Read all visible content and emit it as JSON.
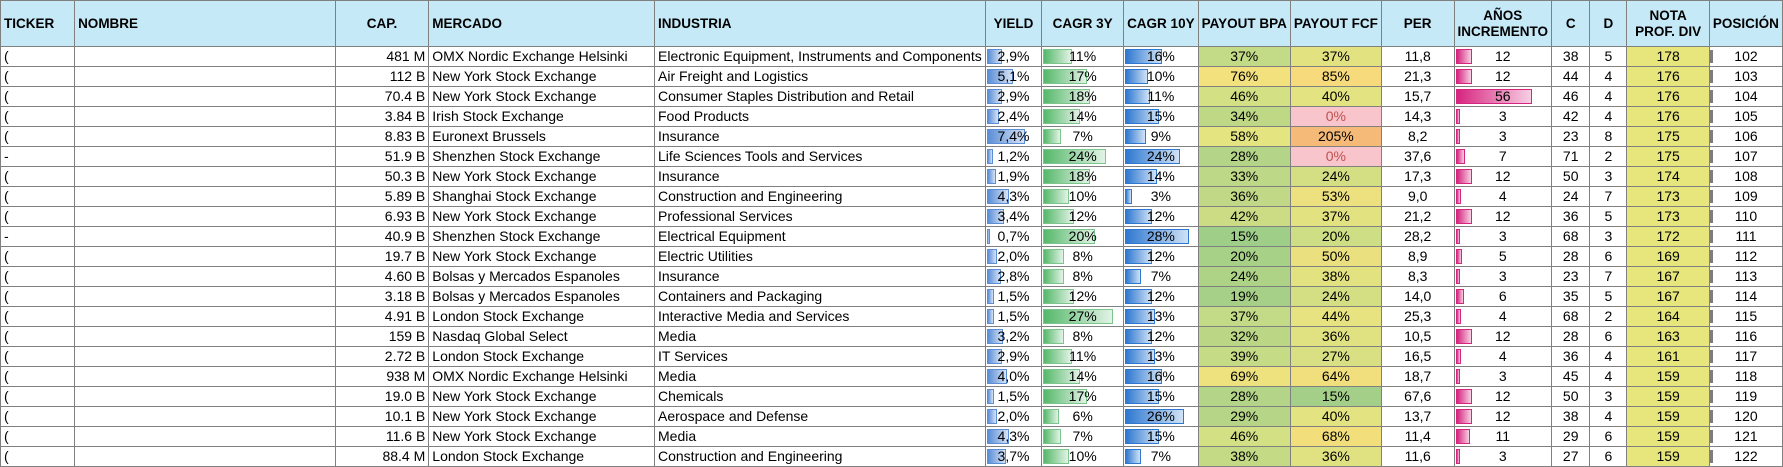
{
  "headers": {
    "ticker": "TICKER",
    "nombre": "NOMBRE",
    "cap": "CAP.",
    "mercado": "MERCADO",
    "industria": "INDUSTRIA",
    "yield": "YIELD",
    "cagr3y": "CAGR 3Y",
    "cagr10y": "CAGR 10Y",
    "payout_bpa": "PAYOUT BPA",
    "payout_fcf": "PAYOUT FCF",
    "per": "PER",
    "anos_line1": "AÑOS",
    "anos_line2": "INCREMENTO",
    "c": "C",
    "d": "D",
    "nota_line1": "NOTA",
    "nota_line2": "PROF. DIV",
    "posicion": "POSICIÓN"
  },
  "rows": [
    {
      "ticker": "(",
      "cap": "481 M",
      "mercado": "OMX Nordic Exchange Helsinki",
      "industria": "Electronic Equipment, Instruments and Components",
      "yield": "2,9%",
      "yield_v": 2.9,
      "cagr3y": "11%",
      "cagr3y_v": 11,
      "cagr10y": "16%",
      "cagr10y_v": 16,
      "payout_bpa": "37%",
      "payout_bpa_color": "#c3da86",
      "payout_fcf": "37%",
      "payout_fcf_color": "#e2e281",
      "per": "11,8",
      "anos": "12",
      "anos_v": 12,
      "c": "38",
      "d": "5",
      "nota": "178",
      "posicion": "102"
    },
    {
      "ticker": "(",
      "cap": "112 B",
      "mercado": "New York Stock Exchange",
      "industria": "Air Freight and Logistics",
      "yield": "5,1%",
      "yield_v": 5.1,
      "cagr3y": "17%",
      "cagr3y_v": 17,
      "cagr10y": "10%",
      "cagr10y_v": 10,
      "payout_bpa": "76%",
      "payout_bpa_color": "#f2e17d",
      "payout_fcf": "85%",
      "payout_fcf_color": "#f6da7b",
      "per": "21,3",
      "anos": "12",
      "anos_v": 12,
      "c": "44",
      "d": "4",
      "nota": "176",
      "posicion": "103"
    },
    {
      "ticker": "(",
      "cap": "70.4 B",
      "mercado": "New York Stock Exchange",
      "industria": "Consumer Staples Distribution and Retail",
      "yield": "2,9%",
      "yield_v": 2.9,
      "cagr3y": "18%",
      "cagr3y_v": 18,
      "cagr10y": "11%",
      "cagr10y_v": 11,
      "payout_bpa": "46%",
      "payout_bpa_color": "#d4e084",
      "payout_fcf": "40%",
      "payout_fcf_color": "#e4e381",
      "per": "15,7",
      "anos": "56",
      "anos_v": 56,
      "c": "46",
      "d": "4",
      "nota": "176",
      "posicion": "104"
    },
    {
      "ticker": "(",
      "cap": "3.84 B",
      "mercado": "Irish Stock Exchange",
      "industria": "Food Products",
      "yield": "2,4%",
      "yield_v": 2.4,
      "cagr3y": "14%",
      "cagr3y_v": 14,
      "cagr10y": "15%",
      "cagr10y_v": 15,
      "payout_bpa": "34%",
      "payout_bpa_color": "#bfd886",
      "payout_fcf": "0%",
      "payout_fcf_color": "#f8c5cc",
      "payout_fcf_text": "#c0504d",
      "per": "14,3",
      "anos": "3",
      "anos_v": 3,
      "c": "42",
      "d": "4",
      "nota": "176",
      "posicion": "105"
    },
    {
      "ticker": "(",
      "cap": "8.83 B",
      "mercado": "Euronext Brussels",
      "industria": "Insurance",
      "yield": "7,4%",
      "yield_v": 7.4,
      "cagr3y": "7%",
      "cagr3y_v": 7,
      "cagr10y": "9%",
      "cagr10y_v": 9,
      "payout_bpa": "58%",
      "payout_bpa_color": "#e4e481",
      "payout_fcf": "205%",
      "payout_fcf_color": "#f5b978",
      "per": "8,2",
      "anos": "3",
      "anos_v": 3,
      "c": "23",
      "d": "8",
      "nota": "175",
      "posicion": "106"
    },
    {
      "ticker": "-",
      "cap": "51.9 B",
      "mercado": "Shenzhen Stock Exchange",
      "industria": "Life Sciences Tools and Services",
      "yield": "1,2%",
      "yield_v": 1.2,
      "cagr3y": "24%",
      "cagr3y_v": 24,
      "cagr10y": "24%",
      "cagr10y_v": 24,
      "payout_bpa": "28%",
      "payout_bpa_color": "#b4d587",
      "payout_fcf": "0%",
      "payout_fcf_color": "#f8c5cc",
      "payout_fcf_text": "#c0504d",
      "per": "37,6",
      "anos": "7",
      "anos_v": 7,
      "c": "71",
      "d": "2",
      "nota": "175",
      "posicion": "107"
    },
    {
      "ticker": "(",
      "cap": "50.3 B",
      "mercado": "New York Stock Exchange",
      "industria": "Insurance",
      "yield": "1,9%",
      "yield_v": 1.9,
      "cagr3y": "18%",
      "cagr3y_v": 18,
      "cagr10y": "14%",
      "cagr10y_v": 14,
      "payout_bpa": "33%",
      "payout_bpa_color": "#bdd886",
      "payout_fcf": "24%",
      "payout_fcf_color": "#d4df84",
      "per": "17,3",
      "anos": "12",
      "anos_v": 12,
      "c": "50",
      "d": "3",
      "nota": "174",
      "posicion": "108"
    },
    {
      "ticker": "(",
      "cap": "5.89 B",
      "mercado": "Shanghai Stock Exchange",
      "industria": "Construction and Engineering",
      "yield": "4,3%",
      "yield_v": 4.3,
      "cagr3y": "10%",
      "cagr3y_v": 10,
      "cagr10y": "3%",
      "cagr10y_v": 3,
      "payout_bpa": "36%",
      "payout_bpa_color": "#c1d986",
      "payout_fcf": "53%",
      "payout_fcf_color": "#ece07f",
      "per": "9,0",
      "anos": "4",
      "anos_v": 4,
      "c": "24",
      "d": "7",
      "nota": "173",
      "posicion": "109"
    },
    {
      "ticker": "(",
      "cap": "6.93 B",
      "mercado": "New York Stock Exchange",
      "industria": "Professional Services",
      "yield": "3,4%",
      "yield_v": 3.4,
      "cagr3y": "12%",
      "cagr3y_v": 12,
      "cagr10y": "12%",
      "cagr10y_v": 12,
      "payout_bpa": "42%",
      "payout_bpa_color": "#cbdc85",
      "payout_fcf": "37%",
      "payout_fcf_color": "#e2e281",
      "per": "21,2",
      "anos": "12",
      "anos_v": 12,
      "c": "36",
      "d": "5",
      "nota": "173",
      "posicion": "110"
    },
    {
      "ticker": "-",
      "cap": "40.9 B",
      "mercado": "Shenzhen Stock Exchange",
      "industria": "Electrical Equipment",
      "yield": "0,7%",
      "yield_v": 0.7,
      "cagr3y": "20%",
      "cagr3y_v": 20,
      "cagr10y": "28%",
      "cagr10y_v": 28,
      "payout_bpa": "15%",
      "payout_bpa_color": "#9fce89",
      "payout_fcf": "20%",
      "payout_fcf_color": "#cdde85",
      "per": "28,2",
      "anos": "3",
      "anos_v": 3,
      "c": "68",
      "d": "3",
      "nota": "172",
      "posicion": "111"
    },
    {
      "ticker": "(",
      "cap": "19.7 B",
      "mercado": "New York Stock Exchange",
      "industria": "Electric Utilities",
      "yield": "2,0%",
      "yield_v": 2.0,
      "cagr3y": "8%",
      "cagr3y_v": 8,
      "cagr10y": "12%",
      "cagr10y_v": 12,
      "payout_bpa": "20%",
      "payout_bpa_color": "#a8d188",
      "payout_fcf": "50%",
      "payout_fcf_color": "#eae07f",
      "per": "8,9",
      "anos": "5",
      "anos_v": 5,
      "c": "28",
      "d": "6",
      "nota": "169",
      "posicion": "112"
    },
    {
      "ticker": "(",
      "cap": "4.60 B",
      "mercado": "Bolsas y Mercados Espanoles",
      "industria": "Insurance",
      "yield": "2,8%",
      "yield_v": 2.8,
      "cagr3y": "8%",
      "cagr3y_v": 8,
      "cagr10y": "7%",
      "cagr10y_v": 7,
      "payout_bpa": "24%",
      "payout_bpa_color": "#aed387",
      "payout_fcf": "38%",
      "payout_fcf_color": "#e3e281",
      "per": "8,3",
      "anos": "3",
      "anos_v": 3,
      "c": "23",
      "d": "7",
      "nota": "167",
      "posicion": "113"
    },
    {
      "ticker": "(",
      "cap": "3.18 B",
      "mercado": "Bolsas y Mercados Espanoles",
      "industria": "Containers and Packaging",
      "yield": "1,5%",
      "yield_v": 1.5,
      "cagr3y": "12%",
      "cagr3y_v": 12,
      "cagr10y": "12%",
      "cagr10y_v": 12,
      "payout_bpa": "19%",
      "payout_bpa_color": "#a6d088",
      "payout_fcf": "24%",
      "payout_fcf_color": "#d4df84",
      "per": "14,0",
      "anos": "6",
      "anos_v": 6,
      "c": "35",
      "d": "5",
      "nota": "167",
      "posicion": "114"
    },
    {
      "ticker": "(",
      "cap": "4.91 B",
      "mercado": "London Stock Exchange",
      "industria": "Interactive Media and Services",
      "yield": "1,5%",
      "yield_v": 1.5,
      "cagr3y": "27%",
      "cagr3y_v": 27,
      "cagr10y": "13%",
      "cagr10y_v": 13,
      "payout_bpa": "37%",
      "payout_bpa_color": "#c3da86",
      "payout_fcf": "44%",
      "payout_fcf_color": "#e6e380",
      "per": "25,3",
      "anos": "4",
      "anos_v": 4,
      "c": "68",
      "d": "2",
      "nota": "164",
      "posicion": "115"
    },
    {
      "ticker": "(",
      "cap": "159 B",
      "mercado": "Nasdaq Global Select",
      "industria": "Media",
      "yield": "3,2%",
      "yield_v": 3.2,
      "cagr3y": "8%",
      "cagr3y_v": 8,
      "cagr10y": "12%",
      "cagr10y_v": 12,
      "payout_bpa": "32%",
      "payout_bpa_color": "#bbd786",
      "payout_fcf": "36%",
      "payout_fcf_color": "#e0e282",
      "per": "10,5",
      "anos": "12",
      "anos_v": 12,
      "c": "28",
      "d": "6",
      "nota": "163",
      "posicion": "116"
    },
    {
      "ticker": "(",
      "cap": "2.72 B",
      "mercado": "London Stock Exchange",
      "industria": "IT Services",
      "yield": "2,9%",
      "yield_v": 2.9,
      "cagr3y": "11%",
      "cagr3y_v": 11,
      "cagr10y": "13%",
      "cagr10y_v": 13,
      "payout_bpa": "39%",
      "payout_bpa_color": "#c6db85",
      "payout_fcf": "27%",
      "payout_fcf_color": "#d8e083",
      "per": "16,5",
      "anos": "4",
      "anos_v": 4,
      "c": "36",
      "d": "4",
      "nota": "161",
      "posicion": "117"
    },
    {
      "ticker": "(",
      "cap": "938 M",
      "mercado": "OMX Nordic Exchange Helsinki",
      "industria": "Media",
      "yield": "4,0%",
      "yield_v": 4.0,
      "cagr3y": "14%",
      "cagr3y_v": 14,
      "cagr10y": "16%",
      "cagr10y_v": 16,
      "payout_bpa": "69%",
      "payout_bpa_color": "#ede27e",
      "payout_fcf": "64%",
      "payout_fcf_color": "#f1df7d",
      "per": "18,7",
      "anos": "3",
      "anos_v": 3,
      "c": "45",
      "d": "4",
      "nota": "159",
      "posicion": "118"
    },
    {
      "ticker": "(",
      "cap": "19.0 B",
      "mercado": "New York Stock Exchange",
      "industria": "Chemicals",
      "yield": "1,5%",
      "yield_v": 1.5,
      "cagr3y": "17%",
      "cagr3y_v": 17,
      "cagr10y": "15%",
      "cagr10y_v": 15,
      "payout_bpa": "28%",
      "payout_bpa_color": "#b4d587",
      "payout_fcf": "15%",
      "payout_fcf_color": "#a3cf88",
      "per": "67,6",
      "anos": "12",
      "anos_v": 12,
      "c": "50",
      "d": "3",
      "nota": "159",
      "posicion": "119"
    },
    {
      "ticker": "(",
      "cap": "10.1 B",
      "mercado": "New York Stock Exchange",
      "industria": "Aerospace and Defense",
      "yield": "2,0%",
      "yield_v": 2.0,
      "cagr3y": "6%",
      "cagr3y_v": 6,
      "cagr10y": "26%",
      "cagr10y_v": 26,
      "payout_bpa": "29%",
      "payout_bpa_color": "#b6d587",
      "payout_fcf": "40%",
      "payout_fcf_color": "#e4e381",
      "per": "13,7",
      "anos": "12",
      "anos_v": 12,
      "c": "38",
      "d": "4",
      "nota": "159",
      "posicion": "120"
    },
    {
      "ticker": "(",
      "cap": "11.6 B",
      "mercado": "New York Stock Exchange",
      "industria": "Media",
      "yield": "4,3%",
      "yield_v": 4.3,
      "cagr3y": "7%",
      "cagr3y_v": 7,
      "cagr10y": "15%",
      "cagr10y_v": 15,
      "payout_bpa": "46%",
      "payout_bpa_color": "#d4e084",
      "payout_fcf": "68%",
      "payout_fcf_color": "#f3de7c",
      "per": "11,4",
      "anos": "11",
      "anos_v": 11,
      "c": "29",
      "d": "6",
      "nota": "159",
      "posicion": "121"
    },
    {
      "ticker": "(",
      "cap": "88.4 M",
      "mercado": "London Stock Exchange",
      "industria": "Construction and Engineering",
      "yield": "3,7%",
      "yield_v": 3.7,
      "cagr3y": "10%",
      "cagr3y_v": 10,
      "cagr10y": "7%",
      "cagr10y_v": 7,
      "payout_bpa": "38%",
      "payout_bpa_color": "#c4da85",
      "payout_fcf": "36%",
      "payout_fcf_color": "#e0e282",
      "per": "11,6",
      "anos": "3",
      "anos_v": 3,
      "c": "27",
      "d": "6",
      "nota": "159",
      "posicion": "122"
    }
  ],
  "colors": {
    "header_bg": "#c5e9f7",
    "nota_bg": "#e6e67d",
    "grid": "#808080"
  }
}
